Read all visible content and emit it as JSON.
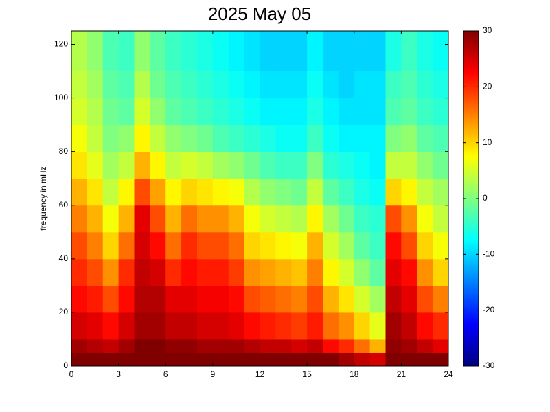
{
  "chart_data": {
    "type": "heatmap",
    "title": "2025 May 05",
    "ylabel": "frequency in mHz",
    "colormap": "jet",
    "xbins": [
      0,
      1,
      2,
      3,
      4,
      5,
      6,
      7,
      8,
      9,
      10,
      11,
      12,
      13,
      14,
      15,
      16,
      17,
      18,
      19,
      20,
      21,
      22,
      23,
      24
    ],
    "ybins": [
      0,
      5,
      10,
      20,
      30,
      40,
      50,
      60,
      70,
      80,
      90,
      100,
      110,
      125
    ],
    "values": [
      [
        30,
        30,
        30,
        30,
        30,
        30,
        30,
        30,
        30,
        30,
        30,
        30,
        30,
        30,
        30,
        30,
        30,
        28,
        26,
        25,
        30,
        30,
        30,
        30
      ],
      [
        28,
        27,
        26,
        28,
        30,
        30,
        29,
        29,
        28,
        28,
        28,
        27,
        26,
        26,
        25,
        26,
        22,
        20,
        16,
        12,
        29,
        28,
        26,
        24
      ],
      [
        25,
        24,
        22,
        25,
        28,
        28,
        26,
        26,
        25,
        25,
        24,
        22,
        21,
        20,
        19,
        21,
        16,
        14,
        10,
        6,
        28,
        26,
        22,
        20
      ],
      [
        22,
        21,
        18,
        22,
        27,
        27,
        24,
        24,
        23,
        23,
        22,
        18,
        17,
        16,
        15,
        18,
        12,
        9,
        5,
        2,
        26,
        24,
        18,
        15
      ],
      [
        20,
        18,
        14,
        20,
        26,
        25,
        20,
        22,
        21,
        21,
        19,
        14,
        13,
        12,
        11,
        15,
        8,
        5,
        1,
        -2,
        24,
        22,
        14,
        10
      ],
      [
        18,
        15,
        10,
        16,
        25,
        22,
        16,
        20,
        18,
        18,
        16,
        10,
        9,
        8,
        7,
        12,
        5,
        2,
        -2,
        -4,
        22,
        18,
        10,
        7
      ],
      [
        15,
        12,
        7,
        12,
        24,
        18,
        12,
        16,
        14,
        14,
        12,
        7,
        5,
        4,
        3,
        8,
        2,
        -1,
        -4,
        -5,
        18,
        14,
        7,
        4
      ],
      [
        12,
        9,
        4,
        8,
        18,
        13,
        8,
        10,
        9,
        8,
        7,
        3,
        1,
        0,
        -1,
        4,
        -2,
        -4,
        -6,
        -7,
        10,
        8,
        4,
        2
      ],
      [
        9,
        6,
        2,
        4,
        12,
        8,
        4,
        5,
        4,
        2,
        1,
        -1,
        -3,
        -4,
        -4,
        0,
        -5,
        -6,
        -7,
        -8,
        4,
        4,
        1,
        -1
      ],
      [
        7,
        4,
        0,
        1,
        8,
        4,
        1,
        0,
        -1,
        -3,
        -4,
        -5,
        -6,
        -7,
        -7,
        -4,
        -7,
        -8,
        -8,
        -8,
        0,
        1,
        -2,
        -3
      ],
      [
        5,
        3,
        -1,
        -2,
        5,
        1,
        -2,
        -3,
        -4,
        -5,
        -6,
        -7,
        -8,
        -8,
        -8,
        -6,
        -8,
        -9,
        -9,
        -9,
        -3,
        -2,
        -4,
        -5
      ],
      [
        4,
        2,
        -2,
        -3,
        3,
        -1,
        -3,
        -4,
        -5,
        -6,
        -7,
        -8,
        -9,
        -9,
        -9,
        -7,
        -9,
        -10,
        -9,
        -9,
        -4,
        -3,
        -5,
        -6
      ],
      [
        3,
        1,
        -3,
        -4,
        1,
        -2,
        -4,
        -5,
        -6,
        -7,
        -8,
        -9,
        -10,
        -10,
        -10,
        -8,
        -10,
        -10,
        -10,
        -10,
        -6,
        -4,
        -6,
        -7
      ]
    ],
    "xlim": [
      0,
      24
    ],
    "xticks": [
      0,
      3,
      6,
      9,
      12,
      15,
      18,
      21,
      24
    ],
    "ylim": [
      0,
      125
    ],
    "yticks": [
      0,
      20,
      40,
      60,
      80,
      100,
      120
    ],
    "clim": [
      -30,
      30
    ],
    "cticks": [
      -30,
      -20,
      -10,
      0,
      10,
      20,
      30
    ]
  }
}
